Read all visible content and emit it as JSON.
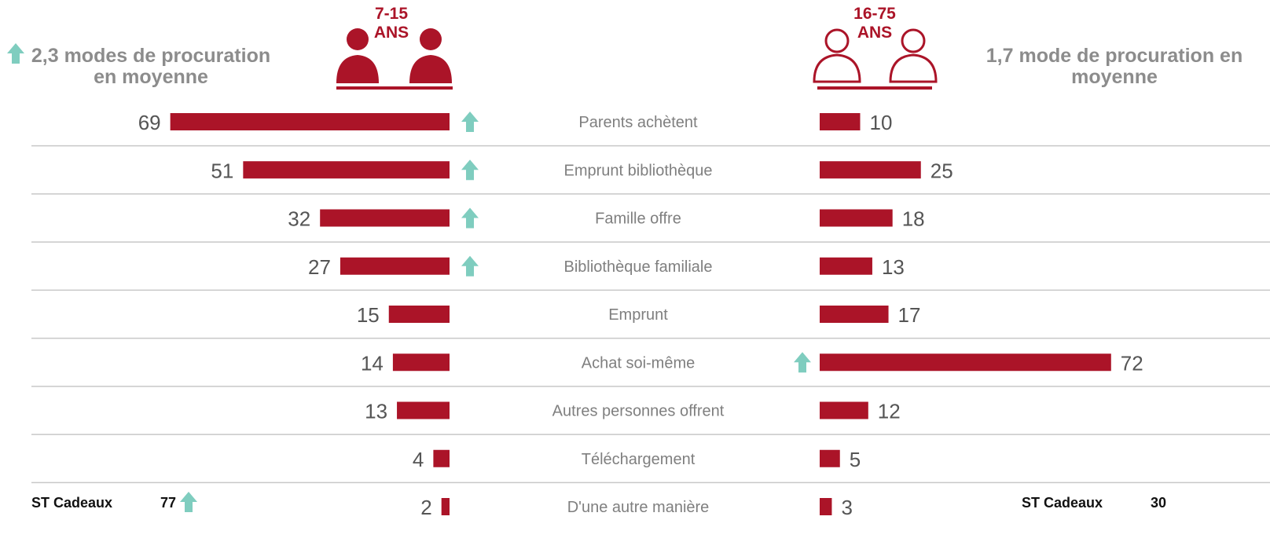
{
  "chart_data": {
    "type": "butterfly",
    "categories": [
      "Parents achètent",
      "Emprunt bibliothèque",
      "Famille offre",
      "Bibliothèque familiale",
      "Emprunt",
      "Achat soi-même",
      "Autres personnes offrent",
      "Téléchargement",
      "D'une autre manière"
    ],
    "increase_color": "#7fcdbf",
    "series": [
      {
        "name": "7-15 ANS",
        "color": "#ab1428",
        "values": [
          69,
          51,
          32,
          27,
          15,
          14,
          13,
          4,
          2
        ],
        "increase": [
          true,
          true,
          true,
          true,
          false,
          false,
          false,
          false,
          false
        ],
        "summary": "2,3 modes de procuration en moyenne",
        "summary_increase": true,
        "subtotal_label": "ST Cadeaux",
        "subtotal": 77,
        "subtotal_increase": true
      },
      {
        "name": "16-75 ANS",
        "color": "#ab1428",
        "values": [
          10,
          25,
          18,
          13,
          17,
          72,
          12,
          5,
          3
        ],
        "increase": [
          false,
          false,
          false,
          false,
          false,
          true,
          false,
          false,
          false
        ],
        "summary": "1,7 mode de procuration en moyenne",
        "summary_increase": false,
        "subtotal_label": "ST Cadeaux",
        "subtotal": 30,
        "subtotal_increase": false
      }
    ]
  }
}
